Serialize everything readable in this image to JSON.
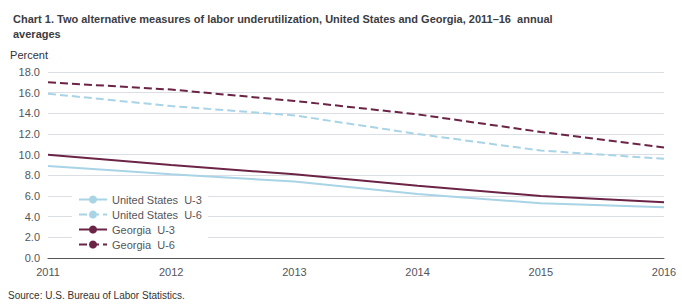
{
  "chart_data": {
    "type": "line",
    "title": "Chart 1. Two alternative measures of labor underutilization, United States and Georgia, 2011–16  annual\naverages",
    "ylabel": "Percent",
    "annotations": [
      "Source: U.S. Bureau of Labor Statistics."
    ],
    "x": [
      2011,
      2012,
      2013,
      2014,
      2015,
      2016
    ],
    "xlim": [
      2011,
      2016
    ],
    "xticks": [
      2011,
      2012,
      2013,
      2014,
      2015,
      2016
    ],
    "ylim": [
      0.0,
      18.0
    ],
    "yticks": [
      {
        "value": 0.0,
        "label": "0.0"
      },
      {
        "value": 2.0,
        "label": "2.0"
      },
      {
        "value": 4.0,
        "label": "4.0"
      },
      {
        "value": 6.0,
        "label": "6.0"
      },
      {
        "value": 8.0,
        "label": "8.0"
      },
      {
        "value": 10.0,
        "label": "10.0"
      },
      {
        "value": 12.0,
        "label": "12.0"
      },
      {
        "value": 14.0,
        "label": "14.0"
      },
      {
        "value": 16.0,
        "label": "16.0"
      },
      {
        "value": 18.0,
        "label": "18.0"
      }
    ],
    "grid": true,
    "legend": "lower left",
    "series": [
      {
        "name": "United States  U-3",
        "color": "#a8d4e6",
        "line_style": "solid",
        "values": [
          8.9,
          8.1,
          7.4,
          6.2,
          5.3,
          4.9
        ]
      },
      {
        "name": "United States  U-6",
        "color": "#a8d4e6",
        "line_style": "dashed",
        "values": [
          15.9,
          14.7,
          13.8,
          12.0,
          10.4,
          9.6
        ]
      },
      {
        "name": "Georgia  U-3",
        "color": "#6b2446",
        "line_style": "solid",
        "values": [
          10.0,
          9.0,
          8.1,
          7.0,
          6.0,
          5.4
        ]
      },
      {
        "name": "Georgia  U-6",
        "color": "#6b2446",
        "line_style": "dashed",
        "values": [
          17.0,
          16.3,
          15.2,
          13.9,
          12.2,
          10.7
        ]
      }
    ]
  }
}
